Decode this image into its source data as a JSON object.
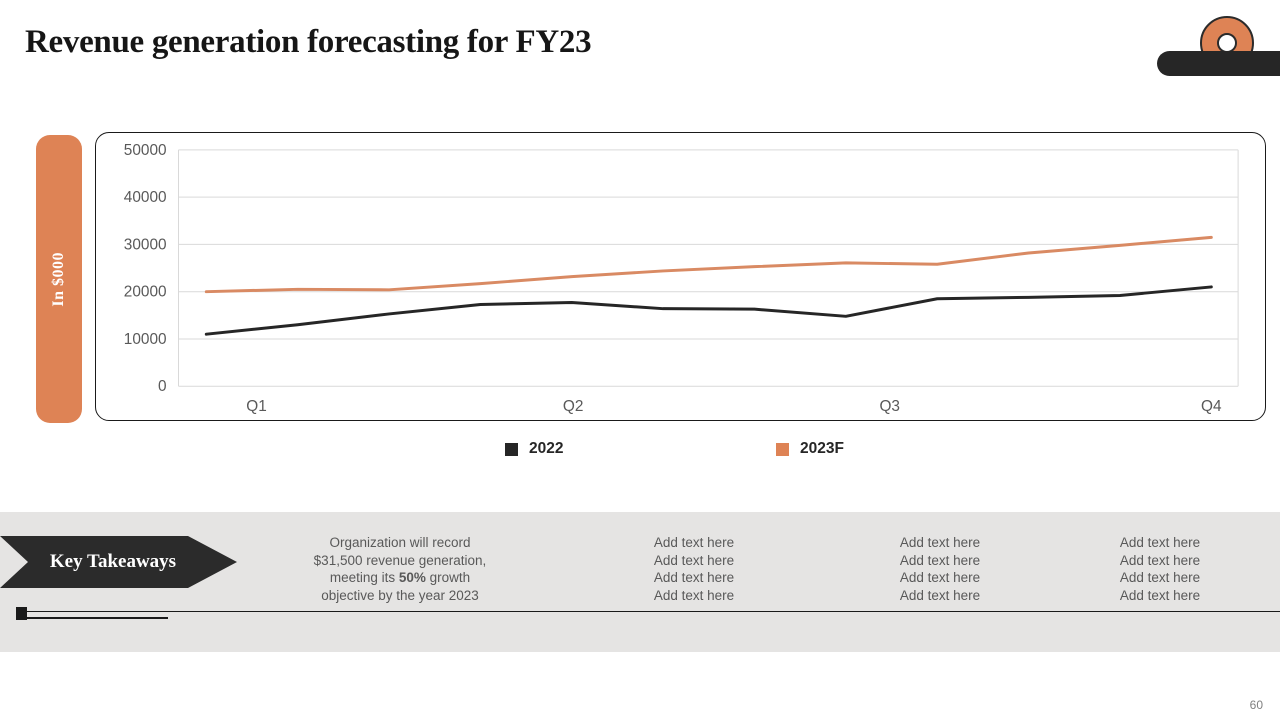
{
  "slide": {
    "title": "Revenue generation forecasting for FY23",
    "page_number": "60"
  },
  "chart_panel": {
    "side_label": "In $000"
  },
  "chart_data": {
    "type": "line",
    "title": "",
    "ylabel": "In $000",
    "xlabel": "",
    "ylim": [
      0,
      50000
    ],
    "y_tick_labels": [
      "0",
      "10000",
      "20000",
      "30000",
      "40000",
      "50000"
    ],
    "x_tick_labels": [
      "Q1",
      "Q2",
      "Q3",
      "Q4"
    ],
    "grid": true,
    "legend_position": "bottom",
    "points_per_series": 12,
    "series": [
      {
        "name": "2022",
        "color": "#262626",
        "values": [
          11000,
          13000,
          15300,
          17300,
          17700,
          16400,
          16300,
          14800,
          18500,
          18800,
          19200,
          21000
        ]
      },
      {
        "name": "2023F",
        "color": "#D98A63",
        "values": [
          20000,
          20500,
          20400,
          21700,
          23200,
          24400,
          25300,
          26100,
          25800,
          28200,
          29800,
          31500
        ]
      }
    ]
  },
  "legend": {
    "items": [
      {
        "label": "2022",
        "color": "#262626"
      },
      {
        "label": "2023F",
        "color": "#DE8355"
      }
    ]
  },
  "takeaways": {
    "banner_label": "Key Takeaways",
    "summary": {
      "line1": "Organization will record",
      "line2": "$31,500 revenue generation,",
      "line3_prefix": "meeting its ",
      "line3_bold": "50%",
      "line3_suffix": " growth",
      "line4": "objective by the year 2023"
    },
    "columns": [
      {
        "lines": [
          "Add text here",
          "Add text here",
          "Add text here",
          "Add text here"
        ]
      },
      {
        "lines": [
          "Add text here",
          "Add text here",
          "Add text here",
          "Add text here"
        ]
      },
      {
        "lines": [
          "Add text here",
          "Add text here",
          "Add text here",
          "Add text here"
        ]
      }
    ]
  }
}
